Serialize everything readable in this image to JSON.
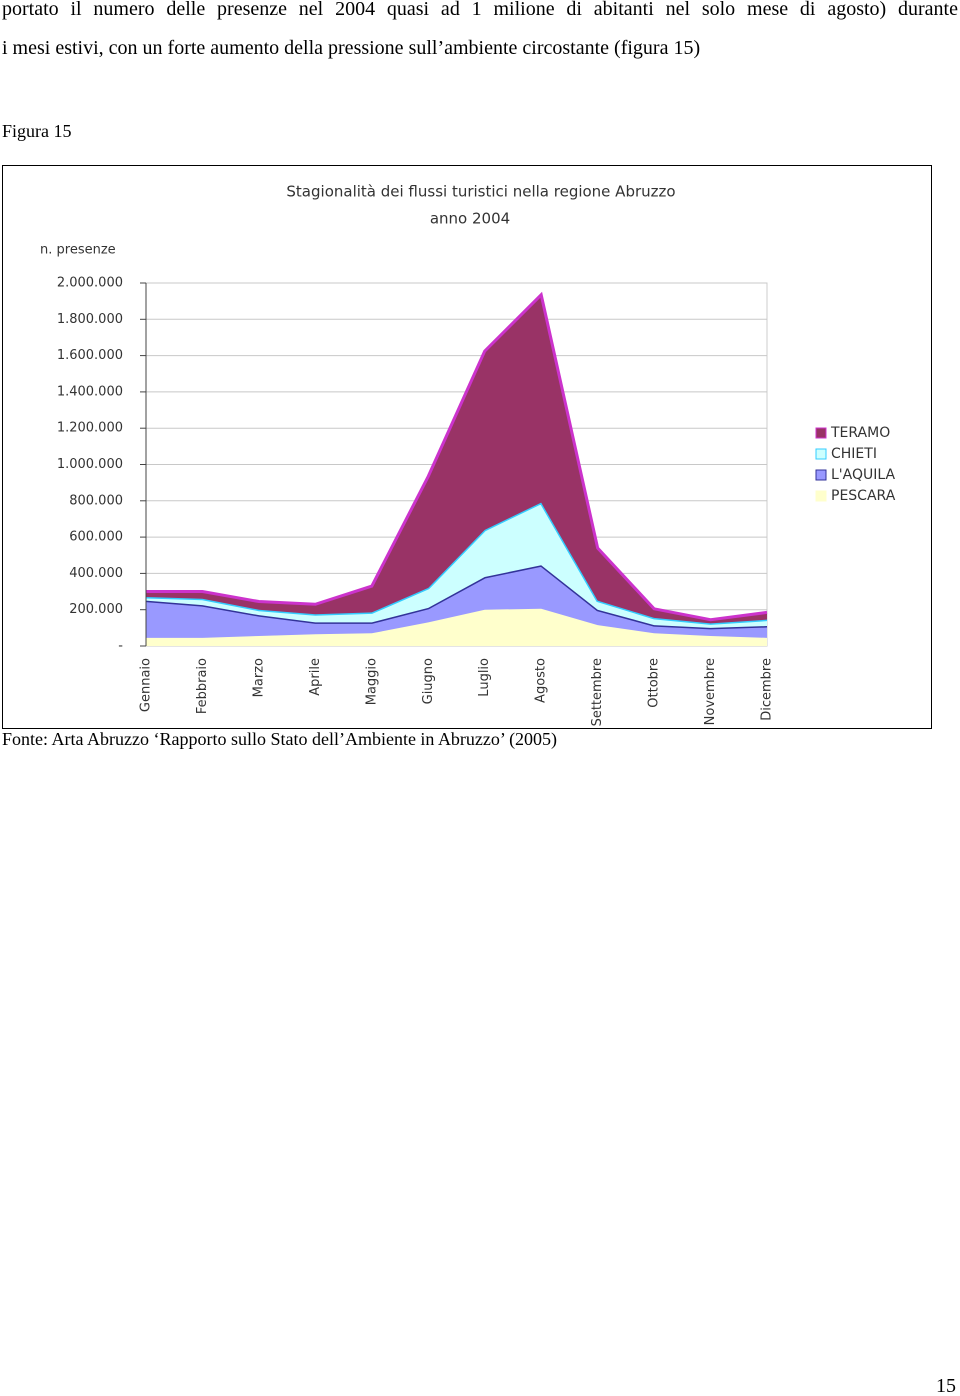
{
  "document": {
    "paragraph": [
      "portato il numero delle presenze nel 2004 quasi ad 1 milione di abitanti nel solo mese di agosto) durante",
      "i mesi estivi, con un forte aumento della pressione sull’ambiente circostante (figura 15)"
    ],
    "figure_label": "Figura 15",
    "caption": "Fonte: Arta Abruzzo ‘Rapporto sullo Stato dell’Ambiente in Abruzzo’ (2005)",
    "page_number": "15"
  },
  "chart_data": {
    "type": "stacked_area",
    "title": "Stagionalità dei flussi turistici nella regione Abruzzo",
    "subtitle": "anno 2004",
    "y_label": "n. presenze",
    "categories": [
      "Gennaio",
      "Febbraio",
      "Marzo",
      "Aprile",
      "Maggio",
      "Giugno",
      "Luglio",
      "Agosto",
      "Settembre",
      "Ottobre",
      "Novembre",
      "Dicembre"
    ],
    "series": [
      {
        "name": "TERAMO",
        "color": "#993366",
        "edge_color": "#cc33cc",
        "values": [
          30000,
          40000,
          45000,
          55000,
          145000,
          615000,
          985000,
          1145000,
          290000,
          50000,
          20000,
          40000
        ]
      },
      {
        "name": "CHIETI",
        "color": "#ccffff",
        "edge_color": "#33ccff",
        "values": [
          20000,
          35000,
          30000,
          45000,
          55000,
          110000,
          260000,
          345000,
          50000,
          40000,
          25000,
          35000
        ]
      },
      {
        "name": "L'AQUILA",
        "color": "#9999ff",
        "edge_color": "#333399",
        "values": [
          205000,
          180000,
          115000,
          65000,
          60000,
          80000,
          180000,
          240000,
          85000,
          45000,
          45000,
          65000
        ]
      },
      {
        "name": "PESCARA",
        "color": "#ffffcc",
        "edge_color": "#ffffcc",
        "values": [
          45000,
          45000,
          55000,
          65000,
          70000,
          130000,
          200000,
          205000,
          115000,
          70000,
          55000,
          45000
        ]
      }
    ],
    "ylim": [
      0,
      2000000
    ],
    "yticks": [
      {
        "value": 0,
        "label": "-"
      },
      {
        "value": 200000,
        "label": "200.000"
      },
      {
        "value": 400000,
        "label": "400.000"
      },
      {
        "value": 600000,
        "label": "600.000"
      },
      {
        "value": 800000,
        "label": "800.000"
      },
      {
        "value": 1000000,
        "label": "1.000.000"
      },
      {
        "value": 1200000,
        "label": "1.200.000"
      },
      {
        "value": 1400000,
        "label": "1.400.000"
      },
      {
        "value": 1600000,
        "label": "1.600.000"
      },
      {
        "value": 1800000,
        "label": "1.800.000"
      },
      {
        "value": 2000000,
        "label": "2.000.000"
      }
    ],
    "grid": true,
    "legend": "right"
  }
}
